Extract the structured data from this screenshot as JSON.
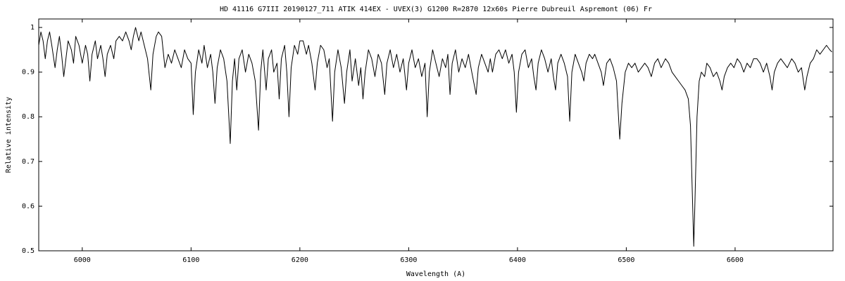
{
  "chart_data": {
    "type": "line",
    "title": "HD 41116 G7III  20190127_711    ATIK 414EX - UVEX(3)  G1200  R=2870   12x60s    Pierre Dubreuil  Aspremont (06) Fr",
    "x_label": "Wavelength (A)",
    "y_label": "Relative intensity",
    "xlim": [
      5960,
      6690
    ],
    "ylim": [
      0.5,
      1.019
    ],
    "xticks": [
      6000,
      6100,
      6200,
      6300,
      6400,
      6500,
      6600
    ],
    "yticks": [
      0.5,
      0.6,
      0.7,
      0.8,
      0.9,
      1
    ],
    "grid": false,
    "x": [
      5960,
      5962,
      5964,
      5966,
      5968,
      5970,
      5972,
      5975,
      5977,
      5979,
      5981,
      5983,
      5985,
      5987,
      5990,
      5992,
      5994,
      5997,
      6000,
      6003,
      6005,
      6007,
      6009,
      6012,
      6014,
      6017,
      6019,
      6021,
      6023,
      6026,
      6029,
      6031,
      6034,
      6037,
      6040,
      6043,
      6045,
      6047,
      6049,
      6052,
      6054,
      6057,
      6060,
      6063,
      6065,
      6068,
      6070,
      6073,
      6076,
      6079,
      6082,
      6085,
      6088,
      6091,
      6094,
      6097,
      6100,
      6102,
      6104,
      6107,
      6110,
      6112,
      6115,
      6118,
      6120,
      6122,
      6124,
      6127,
      6130,
      6133,
      6136,
      6138,
      6140,
      6142,
      6144,
      6147,
      6150,
      6153,
      6156,
      6159,
      6162,
      6164,
      6166,
      6169,
      6171,
      6174,
      6176,
      6179,
      6181,
      6183,
      6186,
      6188,
      6190,
      6192,
      6195,
      6198,
      6200,
      6203,
      6206,
      6208,
      6211,
      6214,
      6216,
      6219,
      6222,
      6225,
      6227,
      6230,
      6232,
      6235,
      6238,
      6241,
      6243,
      6246,
      6248,
      6251,
      6254,
      6256,
      6258,
      6260,
      6263,
      6266,
      6269,
      6272,
      6275,
      6278,
      6280,
      6283,
      6286,
      6289,
      6292,
      6295,
      6298,
      6300,
      6303,
      6306,
      6309,
      6312,
      6315,
      6317,
      6319,
      6322,
      6325,
      6328,
      6331,
      6334,
      6336,
      6338,
      6340,
      6343,
      6346,
      6349,
      6352,
      6355,
      6358,
      6362,
      6364,
      6367,
      6370,
      6373,
      6375,
      6377,
      6380,
      6383,
      6386,
      6389,
      6392,
      6395,
      6397,
      6399,
      6401,
      6404,
      6407,
      6410,
      6413,
      6415,
      6417,
      6419,
      6422,
      6425,
      6428,
      6431,
      6433,
      6435,
      6437,
      6440,
      6443,
      6446,
      6448,
      6450,
      6453,
      6456,
      6459,
      6461,
      6463,
      6466,
      6469,
      6471,
      6474,
      6477,
      6479,
      6482,
      6485,
      6488,
      6491,
      6494,
      6496,
      6499,
      6502,
      6505,
      6508,
      6511,
      6514,
      6517,
      6520,
      6523,
      6526,
      6529,
      6532,
      6536,
      6539,
      6542,
      6545,
      6548,
      6551,
      6554,
      6557,
      6559,
      6561,
      6562,
      6563,
      6565,
      6567,
      6569,
      6572,
      6574,
      6577,
      6580,
      6583,
      6586,
      6588,
      6590,
      6593,
      6596,
      6599,
      6602,
      6605,
      6608,
      6611,
      6614,
      6617,
      6620,
      6623,
      6626,
      6629,
      6632,
      6634,
      6636,
      6639,
      6642,
      6645,
      6648,
      6652,
      6655,
      6658,
      6661,
      6664,
      6666,
      6669,
      6672,
      6675,
      6678,
      6681,
      6684,
      6687,
      6689
    ],
    "series": [
      {
        "name": "HD 41116",
        "color": "#000000",
        "values": [
          0.96,
          0.99,
          0.97,
          0.93,
          0.97,
          0.99,
          0.96,
          0.91,
          0.95,
          0.98,
          0.94,
          0.89,
          0.93,
          0.97,
          0.95,
          0.92,
          0.98,
          0.96,
          0.92,
          0.96,
          0.94,
          0.88,
          0.94,
          0.97,
          0.93,
          0.96,
          0.93,
          0.89,
          0.94,
          0.96,
          0.93,
          0.97,
          0.98,
          0.97,
          0.99,
          0.97,
          0.95,
          0.98,
          1.0,
          0.97,
          0.99,
          0.96,
          0.93,
          0.86,
          0.94,
          0.98,
          0.99,
          0.98,
          0.91,
          0.94,
          0.92,
          0.95,
          0.93,
          0.91,
          0.95,
          0.93,
          0.92,
          0.805,
          0.9,
          0.95,
          0.92,
          0.96,
          0.91,
          0.94,
          0.9,
          0.83,
          0.91,
          0.95,
          0.93,
          0.88,
          0.74,
          0.88,
          0.93,
          0.86,
          0.93,
          0.95,
          0.9,
          0.94,
          0.92,
          0.88,
          0.77,
          0.9,
          0.95,
          0.86,
          0.93,
          0.95,
          0.9,
          0.92,
          0.84,
          0.93,
          0.96,
          0.9,
          0.8,
          0.91,
          0.96,
          0.94,
          0.97,
          0.97,
          0.94,
          0.96,
          0.92,
          0.86,
          0.92,
          0.96,
          0.95,
          0.91,
          0.93,
          0.79,
          0.9,
          0.95,
          0.91,
          0.83,
          0.9,
          0.95,
          0.88,
          0.93,
          0.87,
          0.91,
          0.84,
          0.9,
          0.95,
          0.93,
          0.89,
          0.94,
          0.92,
          0.85,
          0.92,
          0.95,
          0.91,
          0.94,
          0.9,
          0.93,
          0.86,
          0.92,
          0.95,
          0.91,
          0.93,
          0.89,
          0.92,
          0.8,
          0.9,
          0.95,
          0.92,
          0.89,
          0.93,
          0.91,
          0.94,
          0.85,
          0.92,
          0.95,
          0.9,
          0.93,
          0.91,
          0.94,
          0.9,
          0.85,
          0.91,
          0.94,
          0.92,
          0.9,
          0.93,
          0.9,
          0.94,
          0.95,
          0.93,
          0.95,
          0.92,
          0.94,
          0.9,
          0.81,
          0.9,
          0.94,
          0.95,
          0.91,
          0.93,
          0.89,
          0.86,
          0.92,
          0.95,
          0.93,
          0.9,
          0.93,
          0.89,
          0.86,
          0.92,
          0.94,
          0.92,
          0.89,
          0.79,
          0.9,
          0.94,
          0.92,
          0.9,
          0.88,
          0.92,
          0.94,
          0.93,
          0.94,
          0.92,
          0.9,
          0.87,
          0.92,
          0.93,
          0.91,
          0.88,
          0.75,
          0.83,
          0.9,
          0.92,
          0.91,
          0.92,
          0.9,
          0.91,
          0.92,
          0.91,
          0.89,
          0.92,
          0.93,
          0.91,
          0.93,
          0.92,
          0.9,
          0.89,
          0.88,
          0.87,
          0.86,
          0.84,
          0.78,
          0.6,
          0.51,
          0.6,
          0.8,
          0.88,
          0.9,
          0.89,
          0.92,
          0.91,
          0.89,
          0.9,
          0.88,
          0.86,
          0.89,
          0.91,
          0.92,
          0.91,
          0.93,
          0.92,
          0.9,
          0.92,
          0.91,
          0.93,
          0.93,
          0.92,
          0.9,
          0.92,
          0.89,
          0.86,
          0.9,
          0.92,
          0.93,
          0.92,
          0.91,
          0.93,
          0.92,
          0.9,
          0.91,
          0.86,
          0.89,
          0.92,
          0.93,
          0.95,
          0.94,
          0.95,
          0.96,
          0.95,
          0.945
        ]
      }
    ]
  }
}
